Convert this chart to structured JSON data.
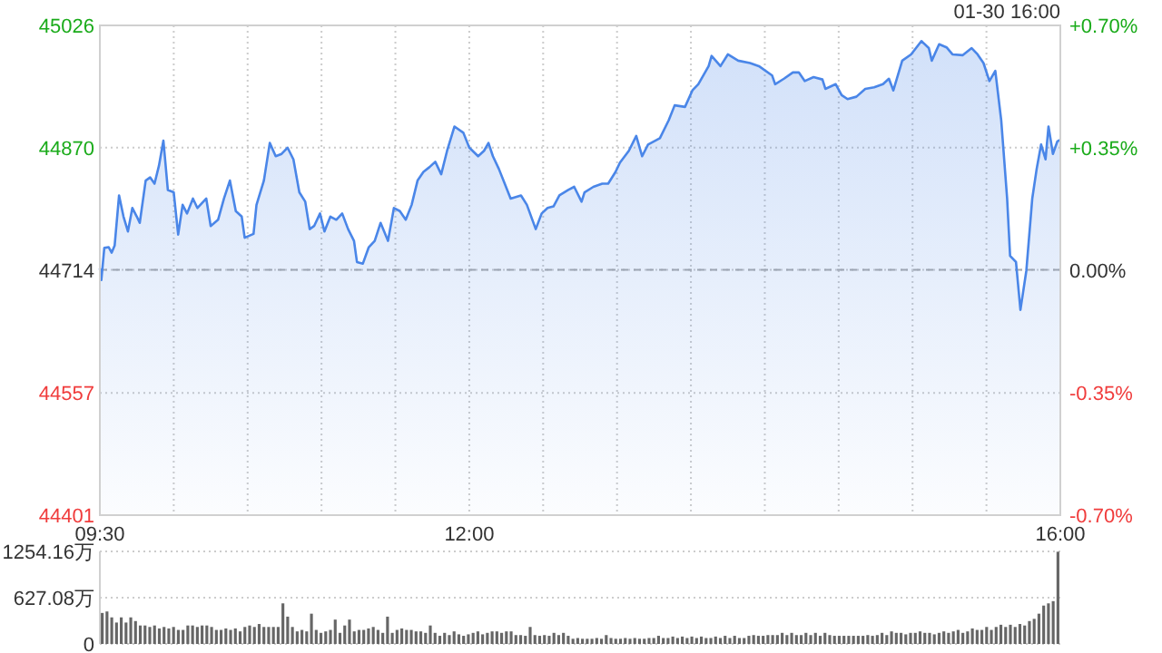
{
  "chart_data": [
    {
      "type": "area",
      "color": "#4a86e8",
      "grid": true,
      "legend": false,
      "marker": "none",
      "line_style": "solid",
      "annotations": [
        "01-30 16:00"
      ],
      "x": [
        9.5,
        9.51,
        9.53,
        9.56,
        9.58,
        9.6,
        9.63,
        9.66,
        9.69,
        9.72,
        9.75,
        9.77,
        9.81,
        9.84,
        9.87,
        9.9,
        9.93,
        9.96,
        10.0,
        10.03,
        10.06,
        10.09,
        10.13,
        10.16,
        10.22,
        10.25,
        10.3,
        10.34,
        10.38,
        10.42,
        10.46,
        10.48,
        10.54,
        10.56,
        10.61,
        10.65,
        10.69,
        10.73,
        10.77,
        10.81,
        10.85,
        10.89,
        10.92,
        10.95,
        10.99,
        11.02,
        11.06,
        11.1,
        11.14,
        11.18,
        11.22,
        11.24,
        11.28,
        11.32,
        11.36,
        11.4,
        11.45,
        11.49,
        11.53,
        11.57,
        11.61,
        11.65,
        11.69,
        11.73,
        11.77,
        11.81,
        11.85,
        11.9,
        11.96,
        12.0,
        12.06,
        12.1,
        12.13,
        12.16,
        12.2,
        12.24,
        12.28,
        12.35,
        12.39,
        12.45,
        12.49,
        12.53,
        12.57,
        12.61,
        12.67,
        12.71,
        12.76,
        12.78,
        12.84,
        12.9,
        12.94,
        12.99,
        13.02,
        13.08,
        13.13,
        13.17,
        13.21,
        13.29,
        13.35,
        13.39,
        13.46,
        13.51,
        13.55,
        13.62,
        13.64,
        13.7,
        13.75,
        13.82,
        13.9,
        13.96,
        14.05,
        14.07,
        14.13,
        14.19,
        14.23,
        14.27,
        14.33,
        14.39,
        14.41,
        14.48,
        14.52,
        14.56,
        14.62,
        14.68,
        14.74,
        14.8,
        14.84,
        14.87,
        14.93,
        14.99,
        15.06,
        15.11,
        15.13,
        15.18,
        15.23,
        15.27,
        15.34,
        15.4,
        15.44,
        15.48,
        15.52,
        15.56,
        15.6,
        15.64,
        15.66,
        15.7,
        15.73,
        15.77,
        15.81,
        15.84,
        15.87,
        15.9,
        15.92,
        15.95,
        15.98,
        16.0
      ],
      "values": [
        44716,
        44701,
        44742,
        44743,
        44736,
        44745,
        44809,
        44782,
        44763,
        44793,
        44782,
        44774,
        44828,
        44832,
        44824,
        44847,
        44879,
        44816,
        44813,
        44759,
        44797,
        44786,
        44805,
        44793,
        44805,
        44770,
        44778,
        44805,
        44828,
        44789,
        44782,
        44755,
        44760,
        44797,
        44828,
        44876,
        44859,
        44862,
        44870,
        44855,
        44813,
        44801,
        44766,
        44770,
        44786,
        44763,
        44782,
        44778,
        44786,
        44766,
        44751,
        44724,
        44722,
        44743,
        44751,
        44774,
        44751,
        44793,
        44789,
        44778,
        44797,
        44828,
        44839,
        44845,
        44852,
        44836,
        44866,
        44897,
        44889,
        44870,
        44859,
        44866,
        44876,
        44859,
        44843,
        44824,
        44805,
        44809,
        44797,
        44766,
        44786,
        44793,
        44795,
        44809,
        44816,
        44820,
        44801,
        44813,
        44820,
        44824,
        44824,
        44839,
        44851,
        44866,
        44885,
        44859,
        44874,
        44882,
        44905,
        44924,
        44922,
        44943,
        44951,
        44974,
        44987,
        44974,
        44989,
        44981,
        44978,
        44974,
        44962,
        44951,
        44958,
        44966,
        44966,
        44955,
        44960,
        44957,
        44945,
        44951,
        44937,
        44932,
        44935,
        44945,
        44947,
        44951,
        44958,
        44943,
        44981,
        44989,
        45006,
        44997,
        44981,
        45002,
        44998,
        44989,
        44988,
        44997,
        44989,
        44978,
        44955,
        44968,
        44905,
        44805,
        44732,
        44724,
        44663,
        44713,
        44805,
        44843,
        44874,
        44855,
        44897,
        44862,
        44878,
        44880
      ],
      "xlim": [
        9.5,
        16
      ],
      "xticks": [
        {
          "value": 9.5,
          "label": "09:30"
        },
        {
          "value": 10,
          "label": null
        },
        {
          "value": 10.5,
          "label": null
        },
        {
          "value": 11,
          "label": null
        },
        {
          "value": 11.5,
          "label": null
        },
        {
          "value": 12,
          "label": "12:00"
        },
        {
          "value": 12.5,
          "label": null
        },
        {
          "value": 13,
          "label": null
        },
        {
          "value": 13.5,
          "label": null
        },
        {
          "value": 14,
          "label": null
        },
        {
          "value": 14.5,
          "label": null
        },
        {
          "value": 15,
          "label": null
        },
        {
          "value": 15.5,
          "label": null
        },
        {
          "value": 16,
          "label": "16:00"
        }
      ],
      "ylim": [
        44401,
        45026
      ],
      "yticks": [
        44401,
        44557,
        44714,
        44870,
        45026
      ],
      "y2lim": [
        -0.7,
        0.7
      ],
      "y2ticks": [
        {
          "value": -0.7,
          "label": "-0.70%"
        },
        {
          "value": -0.35,
          "label": "-0.35%"
        },
        {
          "value": 0,
          "label": "0.00%"
        },
        {
          "value": 0.35,
          "label": "+0.35%"
        },
        {
          "value": 0.7,
          "label": "+0.70%"
        }
      ],
      "ref_lines": [
        {
          "axis": "y",
          "value": 44714,
          "color": "#aaaaaa",
          "line_style": "dashed"
        }
      ]
    },
    {
      "type": "bar",
      "color": "#666666",
      "grid": "y",
      "legend": false,
      "tick_labels": "y",
      "categories": [
        null,
        null,
        null,
        null,
        null,
        null,
        null,
        null,
        null,
        null,
        null,
        null,
        null,
        null,
        null,
        null,
        null,
        null,
        null,
        null,
        null,
        null,
        null,
        null,
        null,
        null,
        null,
        null,
        null,
        null,
        null,
        null,
        null,
        null,
        null,
        null,
        null,
        null,
        null,
        null,
        null,
        null,
        null,
        null,
        null,
        null,
        null,
        null,
        null,
        null,
        null,
        null,
        null,
        null,
        null,
        null,
        null,
        null,
        null,
        null,
        null,
        null,
        null,
        null,
        null,
        null,
        null,
        null,
        null,
        null,
        null,
        null,
        null,
        null,
        null,
        null,
        null,
        null,
        null,
        null,
        null,
        null,
        null,
        null,
        null,
        null,
        null,
        null,
        null,
        null,
        null,
        null,
        null,
        null,
        null,
        null,
        null,
        null,
        null,
        null,
        null,
        null,
        null,
        null,
        null,
        null,
        null,
        null,
        null,
        null,
        null,
        null,
        null,
        null,
        null,
        null,
        null,
        null,
        null,
        null,
        null,
        null,
        null,
        null,
        null,
        null,
        null,
        null,
        null,
        null,
        null,
        null,
        null,
        null,
        null,
        null,
        null,
        null,
        null,
        null,
        null,
        null,
        null,
        null,
        null,
        null,
        null,
        null,
        null,
        null,
        null,
        null,
        null,
        null,
        null,
        null,
        null,
        null,
        null,
        null,
        null,
        null,
        null,
        null,
        null,
        null,
        null,
        null,
        null,
        null,
        null,
        null,
        null,
        null,
        null,
        null,
        null,
        null,
        null,
        null,
        null,
        null,
        null,
        null,
        null,
        null,
        null,
        null,
        null,
        null,
        null,
        null,
        null,
        null,
        null,
        null,
        null,
        null,
        null,
        null,
        null,
        null
      ],
      "values": [
        420,
        440,
        360,
        290,
        360,
        290,
        360,
        310,
        250,
        250,
        230,
        250,
        210,
        230,
        210,
        230,
        190,
        190,
        250,
        250,
        230,
        250,
        250,
        230,
        190,
        190,
        210,
        190,
        210,
        170,
        230,
        250,
        230,
        270,
        230,
        230,
        230,
        230,
        550,
        370,
        230,
        170,
        190,
        170,
        410,
        190,
        150,
        170,
        190,
        330,
        150,
        250,
        330,
        170,
        190,
        190,
        210,
        230,
        190,
        150,
        370,
        150,
        190,
        210,
        190,
        190,
        170,
        170,
        150,
        250,
        150,
        110,
        150,
        120,
        170,
        130,
        110,
        130,
        150,
        170,
        130,
        150,
        170,
        170,
        150,
        170,
        170,
        120,
        120,
        110,
        230,
        120,
        110,
        120,
        110,
        150,
        120,
        150,
        110,
        70,
        80,
        70,
        70,
        70,
        80,
        70,
        120,
        80,
        70,
        70,
        80,
        70,
        80,
        70,
        70,
        80,
        80,
        110,
        80,
        80,
        100,
        80,
        100,
        80,
        100,
        80,
        100,
        80,
        80,
        100,
        80,
        110,
        80,
        110,
        80,
        80,
        110,
        120,
        110,
        110,
        120,
        120,
        120,
        150,
        120,
        150,
        120,
        120,
        150,
        120,
        150,
        110,
        150,
        120,
        110,
        110,
        110,
        110,
        110,
        110,
        110,
        120,
        110,
        120,
        150,
        120,
        170,
        150,
        150,
        130,
        150,
        150,
        170,
        150,
        150,
        130,
        150,
        170,
        150,
        170,
        190,
        150,
        170,
        210,
        190,
        190,
        230,
        190,
        230,
        260,
        230,
        260,
        230,
        270,
        250,
        310,
        340,
        410,
        520,
        550,
        580,
        1250
      ],
      "ylim": [
        0,
        1254.16
      ],
      "yticks": [
        0,
        {
          "value": 627.08,
          "label": "627.08万"
        },
        {
          "value": 1254.16,
          "label": "1254.16万"
        }
      ]
    }
  ]
}
